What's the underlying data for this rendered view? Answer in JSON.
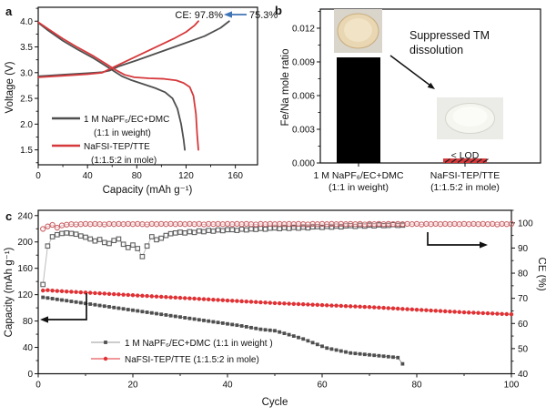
{
  "chart_data": [
    {
      "id": "panel-a",
      "type": "line",
      "letter": "a",
      "xlabel": "Capacity (mAh g⁻¹)",
      "ylabel": "Voltage (V)",
      "xlim": [
        0,
        178
      ],
      "ylim": [
        1.21,
        4.27
      ],
      "xtick_vals": [
        0,
        40,
        80,
        120,
        160
      ],
      "xtick_labels": [
        "0",
        "40",
        "80",
        "120",
        "160"
      ],
      "ytick_vals": [
        1.5,
        2.0,
        2.5,
        3.0,
        3.5,
        4.0
      ],
      "ytick_labels": [
        "1.5",
        "2.0",
        "2.5",
        "3.0",
        "3.5",
        "4.0"
      ],
      "grid": false,
      "annotations": {
        "ce_label": "CE: 97.8%",
        "ce_value2": "75.3%",
        "arrow_color": "#3f74b6"
      },
      "legend": [
        {
          "line1": "1 M NaPF₆/EC+DMC",
          "line2": "(1:1 in weight)",
          "color": "#4f4f4f"
        },
        {
          "line1": "NaFSI-TEP/TTE",
          "line2": "(1:1.5:2 in mole)",
          "color": "#d6393c"
        }
      ],
      "series": [
        {
          "name": "NaPF6 charge",
          "color": "#4f4f4f",
          "points": [
            [
              0,
              2.93
            ],
            [
              20,
              2.96
            ],
            [
              40,
              2.99
            ],
            [
              52,
              3.01
            ],
            [
              58,
              3.04
            ],
            [
              65,
              3.12
            ],
            [
              80,
              3.24
            ],
            [
              100,
              3.41
            ],
            [
              120,
              3.58
            ],
            [
              135,
              3.71
            ],
            [
              148,
              3.87
            ],
            [
              155,
              4.0
            ]
          ]
        },
        {
          "name": "NaPF6 discharge",
          "color": "#4f4f4f",
          "points": [
            [
              0,
              3.97
            ],
            [
              8,
              3.82
            ],
            [
              20,
              3.62
            ],
            [
              32,
              3.45
            ],
            [
              45,
              3.28
            ],
            [
              55,
              3.13
            ],
            [
              62,
              3.02
            ],
            [
              68,
              2.93
            ],
            [
              75,
              2.86
            ],
            [
              85,
              2.78
            ],
            [
              95,
              2.7
            ],
            [
              103,
              2.62
            ],
            [
              109,
              2.5
            ],
            [
              113,
              2.3
            ],
            [
              116,
              2.0
            ],
            [
              118,
              1.7
            ],
            [
              119,
              1.5
            ]
          ]
        },
        {
          "name": "NaFSI charge",
          "color": "#d6393c",
          "points": [
            [
              0,
              2.91
            ],
            [
              20,
              2.94
            ],
            [
              40,
              2.97
            ],
            [
              52,
              3.0
            ],
            [
              58,
              3.07
            ],
            [
              65,
              3.15
            ],
            [
              80,
              3.32
            ],
            [
              95,
              3.49
            ],
            [
              110,
              3.66
            ],
            [
              120,
              3.79
            ],
            [
              127,
              3.92
            ],
            [
              130,
              4.0
            ]
          ]
        },
        {
          "name": "NaFSI discharge",
          "color": "#d6393c",
          "points": [
            [
              0,
              3.98
            ],
            [
              8,
              3.85
            ],
            [
              20,
              3.66
            ],
            [
              32,
              3.49
            ],
            [
              45,
              3.32
            ],
            [
              55,
              3.17
            ],
            [
              63,
              3.05
            ],
            [
              70,
              2.96
            ],
            [
              78,
              2.91
            ],
            [
              90,
              2.89
            ],
            [
              102,
              2.88
            ],
            [
              112,
              2.85
            ],
            [
              118,
              2.8
            ],
            [
              123,
              2.72
            ],
            [
              126,
              2.55
            ],
            [
              128,
              2.2
            ],
            [
              129,
              1.8
            ],
            [
              130,
              1.5
            ]
          ]
        }
      ]
    },
    {
      "id": "panel-b",
      "type": "bar",
      "letter": "b",
      "ylabel": "Fe/Na mole ratio",
      "ylim": [
        0,
        0.0137
      ],
      "ytick_vals": [
        0,
        0.003,
        0.006,
        0.009,
        0.012
      ],
      "ytick_labels": [
        "0.000",
        "0.003",
        "0.006",
        "0.009",
        "0.012"
      ],
      "grid": false,
      "values": [
        0.0094,
        0.0004
      ],
      "bar_colors": [
        "#000000",
        "#d6393c"
      ],
      "categories": [
        {
          "line1": "1 M NaPF₆/EC+DMC",
          "line2": "(1:1 in weight)"
        },
        {
          "line1": "NaFSI-TEP/TTE",
          "line2": "(1:1.5:2 in mole)"
        }
      ],
      "annotations": {
        "line1": "Suppressed TM",
        "line2": "dissolution",
        "lod": "< LOD"
      }
    },
    {
      "id": "panel-c",
      "type": "line+scatter",
      "letter": "c",
      "xlabel": "Cycle",
      "ylabel_left": "Capacity (mAh g⁻¹)",
      "ylabel_right": "CE (%)",
      "xlim": [
        0,
        100
      ],
      "ylim_left": [
        0,
        248
      ],
      "ylim_right": [
        40,
        105
      ],
      "xtick_vals": [
        0,
        20,
        40,
        60,
        80,
        100
      ],
      "xtick_labels": [
        "0",
        "20",
        "40",
        "60",
        "80",
        "100"
      ],
      "ytick_left_vals": [
        0,
        40,
        80,
        120,
        160,
        200,
        240
      ],
      "ytick_left_labels": [
        "0",
        "40",
        "80",
        "120",
        "160",
        "200",
        "240"
      ],
      "ytick_right_vals": [
        40,
        50,
        60,
        70,
        80,
        90,
        100
      ],
      "ytick_right_labels": [
        "40",
        "50",
        "60",
        "70",
        "80",
        "90",
        "100"
      ],
      "grid": false,
      "legend": [
        {
          "label": "1 M NaPF₆/EC+DMC (1:1 in weight )",
          "color": "#4f4f4f",
          "marker": "square_filled"
        },
        {
          "label": "NaFSI-TEP/TTE (1:1.5:2 in mole)",
          "color": "#e03134",
          "marker": "circle_filled"
        }
      ],
      "series": [
        {
          "name": "NaPF6 capacity",
          "axis": "left",
          "marker": "square_filled",
          "color": "#4f4f4f",
          "line_color": "#8f8f8f",
          "start_cycle": 1,
          "values": [
            116.0,
            115.0,
            114.0,
            112.9,
            111.9,
            110.9,
            109.8,
            108.8,
            107.8,
            106.7,
            105.7,
            104.7,
            103.6,
            102.6,
            101.6,
            100.5,
            99.5,
            98.5,
            97.4,
            96.4,
            95.4,
            94.3,
            93.3,
            92.3,
            91.2,
            90.2,
            89.2,
            88.1,
            87.1,
            86.1,
            85.0,
            84.0,
            83.0,
            81.9,
            80.9,
            79.9,
            78.8,
            77.8,
            76.8,
            75.7,
            74.7,
            73.7,
            72.6,
            71.3,
            70.0,
            68.8,
            67.5,
            66.7,
            66.0,
            65.3,
            63.3,
            61.3,
            59.3,
            57.2,
            55.0,
            52.8,
            50.0,
            47.2,
            44.5,
            41.7,
            39.0,
            37.5,
            36.0,
            34.5,
            33.0,
            31.5,
            30.8,
            30.1,
            29.4,
            28.7,
            28.0,
            27.3,
            26.6,
            25.9,
            25.2,
            24.5,
            15.0
          ]
        },
        {
          "name": "NaFSI capacity",
          "axis": "left",
          "marker": "circle_filled",
          "color": "#e03134",
          "line_color": "#e03134",
          "start_cycle": 1,
          "values": [
            126.4,
            126.8,
            126.2,
            125.7,
            125.3,
            124.8,
            124.4,
            124.0,
            123.6,
            123.2,
            122.8,
            122.4,
            122.0,
            121.6,
            121.2,
            120.8,
            120.4,
            120.0,
            119.6,
            119.2,
            118.8,
            118.4,
            118.0,
            117.6,
            117.2,
            116.8,
            116.4,
            116.0,
            115.6,
            115.2,
            114.8,
            114.4,
            114.0,
            113.6,
            113.2,
            112.8,
            112.4,
            112.0,
            111.6,
            111.2,
            110.8,
            110.4,
            110.0,
            109.6,
            109.2,
            108.8,
            108.4,
            108.0,
            107.6,
            107.2,
            106.9,
            106.6,
            106.3,
            106.0,
            105.7,
            105.4,
            105.1,
            104.8,
            104.5,
            104.2,
            103.9,
            103.6,
            103.3,
            103.0,
            102.7,
            102.4,
            102.1,
            101.8,
            101.5,
            101.2,
            100.8,
            100.4,
            100.0,
            99.6,
            99.2,
            98.8,
            98.4,
            98.0,
            97.6,
            97.2,
            96.8,
            96.4,
            96.0,
            95.6,
            95.2,
            94.8,
            94.4,
            94.0,
            93.6,
            93.2,
            92.9,
            92.6,
            92.3,
            92.0,
            91.7,
            91.4,
            91.1,
            90.8,
            90.5,
            90.2
          ]
        },
        {
          "name": "NaPF6 CE",
          "axis": "right",
          "marker": "square_open",
          "color": "#5f5f5f",
          "line_color": "#b5b5b5",
          "start_cycle": 1,
          "values": [
            75.5,
            90.8,
            94.5,
            95.3,
            95.8,
            96.0,
            95.8,
            95.5,
            94.8,
            94.3,
            93.6,
            92.8,
            93.4,
            92.2,
            91.8,
            93.0,
            93.6,
            91.5,
            90.2,
            91.2,
            89.8,
            86.6,
            90.8,
            94.5,
            93.3,
            93.9,
            95.0,
            95.7,
            96.0,
            96.3,
            96.0,
            96.5,
            96.2,
            96.8,
            96.5,
            97.0,
            96.7,
            97.2,
            96.9,
            97.3,
            97.3,
            97.0,
            97.5,
            97.2,
            97.6,
            97.4,
            97.8,
            97.5,
            97.9,
            98.0,
            97.7,
            98.1,
            97.8,
            98.2,
            97.9,
            98.3,
            98.0,
            98.4,
            98.5,
            98.2,
            98.6,
            98.3,
            98.7,
            98.4,
            98.8,
            98.9,
            98.6,
            99.0,
            98.7,
            99.1,
            98.8,
            99.2,
            98.9,
            99.0,
            99.3,
            99.0,
            99.1
          ]
        },
        {
          "name": "NaFSI CE",
          "axis": "right",
          "marker": "circle_open",
          "color": "#ca6266",
          "line_color": "#e7babb",
          "start_cycle": 1,
          "values": [
            97.6,
            98.6,
            99.2,
            98.1,
            99.0,
            99.3,
            99.5,
            99.4,
            99.5,
            99.6,
            99.5,
            99.6,
            99.5,
            99.4,
            99.6,
            99.5,
            99.6,
            99.5,
            99.6,
            99.5,
            99.6,
            99.5,
            99.4,
            99.6,
            99.5,
            99.6,
            99.5,
            99.6,
            99.5,
            99.6,
            99.5,
            99.6,
            99.5,
            99.6,
            99.4,
            99.6,
            99.5,
            99.6,
            99.5,
            99.6,
            99.5,
            99.6,
            99.5,
            99.6,
            99.5,
            99.4,
            99.6,
            99.5,
            99.6,
            99.5,
            99.6,
            99.5,
            99.6,
            99.5,
            99.6,
            99.5,
            99.4,
            99.6,
            99.5,
            99.6,
            99.5,
            99.6,
            99.5,
            99.6,
            99.5,
            99.6,
            99.5,
            99.6,
            99.4,
            99.6,
            99.5,
            99.6,
            99.5,
            99.6,
            99.5,
            99.6,
            99.5,
            99.6,
            99.5,
            99.6,
            99.4,
            99.6,
            99.5,
            99.6,
            99.5,
            99.6,
            99.5,
            99.6,
            99.5,
            99.6,
            99.5,
            99.6,
            99.5,
            99.6,
            99.5,
            99.6,
            99.4,
            99.6,
            99.5,
            99.6
          ]
        }
      ]
    }
  ]
}
